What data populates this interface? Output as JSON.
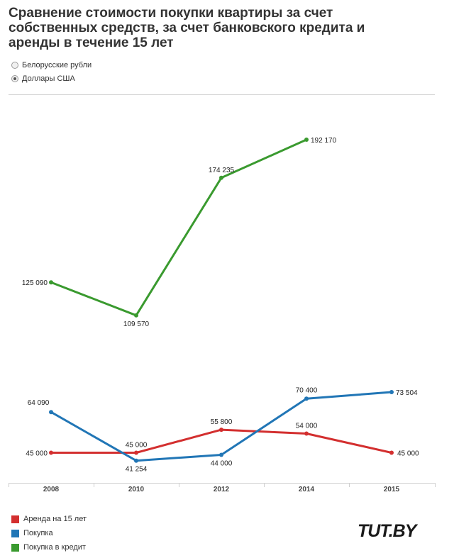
{
  "title": "Сравнение стоимости покупки квартиры за счет собственных средств, за счет банковского кредита и аренды в течение 15 лет",
  "currency_options": [
    {
      "label": "Белорусские рубли",
      "selected": false
    },
    {
      "label": "Доллары США",
      "selected": true
    }
  ],
  "chart_data": {
    "type": "line",
    "categories": [
      "2008",
      "2010",
      "2012",
      "2014",
      "2015"
    ],
    "ylim": [
      0,
      205000
    ],
    "grid": false,
    "legend_position": "bottom-left",
    "series": [
      {
        "name": "Аренда на 15 лет",
        "color": "#d32f2f",
        "values": [
          45000,
          45000,
          55800,
          54000,
          45000
        ],
        "labels": [
          "45 000",
          "45 000",
          "55 800",
          "54 000",
          "45 000"
        ]
      },
      {
        "name": "Покупка",
        "color": "#2176b6",
        "values": [
          64090,
          41254,
          44000,
          70400,
          73504
        ],
        "labels": [
          "64 090",
          "41 254",
          "44 000",
          "70 400",
          "73 504"
        ]
      },
      {
        "name": "Покупка в кредит",
        "color": "#3a9a2f",
        "values": [
          125090,
          109570,
          174235,
          192170,
          null
        ],
        "labels": [
          "125 090",
          "109 570",
          "174 235",
          "192 170",
          null
        ]
      }
    ]
  },
  "logo_text": "TUT.BY"
}
